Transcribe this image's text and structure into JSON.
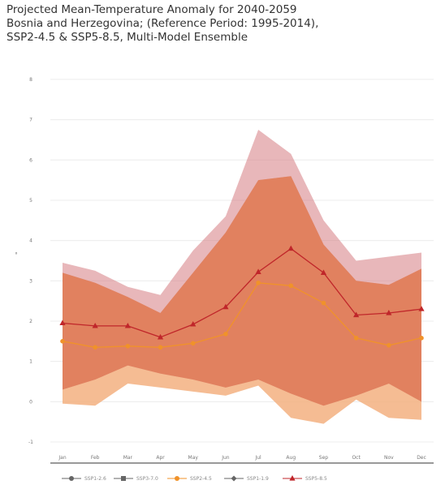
{
  "title_lines": [
    "Projected Mean-Temperature Anomaly for 2040-2059",
    "Bosnia and Herzegovina; (Reference Period: 1995-2014),",
    "SSP2-4.5 & SSP5-8.5, Multi-Model Ensemble"
  ],
  "chart_data": {
    "type": "area",
    "categories": [
      "Jan",
      "Feb",
      "Mar",
      "Apr",
      "May",
      "Jun",
      "Jul",
      "Aug",
      "Sep",
      "Oct",
      "Nov",
      "Dec"
    ],
    "y_ticks": [
      -1,
      0,
      1,
      2,
      3,
      4,
      5,
      6,
      7,
      8
    ],
    "ylim": [
      -1,
      8.2
    ],
    "ylabel": "°",
    "series": [
      {
        "name": "SSP2-4.5",
        "kind": "median",
        "color": "#f0922a",
        "marker": "circle",
        "values": [
          1.5,
          1.35,
          1.38,
          1.35,
          1.45,
          1.68,
          2.95,
          2.88,
          2.45,
          1.58,
          1.4,
          1.58
        ]
      },
      {
        "name": "SSP5-8.5",
        "kind": "median",
        "color": "#c0262a",
        "marker": "triangle",
        "values": [
          1.95,
          1.88,
          1.88,
          1.6,
          1.92,
          2.35,
          3.22,
          3.8,
          3.2,
          2.15,
          2.2,
          2.3
        ]
      }
    ],
    "bands": [
      {
        "legend_index": 0,
        "color": "#f3b080",
        "opacity": 0.85,
        "upper": [
          3.2,
          2.95,
          2.6,
          2.2,
          3.2,
          4.2,
          5.5,
          5.6,
          3.9,
          3.0,
          2.9,
          3.3
        ],
        "lower": [
          -0.05,
          -0.1,
          0.45,
          0.35,
          0.25,
          0.15,
          0.4,
          -0.4,
          -0.55,
          0.05,
          -0.4,
          -0.45
        ]
      },
      {
        "legend_index": 2,
        "color": "#d67c82",
        "opacity": 0.55,
        "upper": [
          3.45,
          3.25,
          2.85,
          2.65,
          3.75,
          4.6,
          6.75,
          6.15,
          4.5,
          3.5,
          3.6,
          3.7
        ],
        "lower": [
          0.3,
          0.55,
          0.9,
          0.7,
          0.55,
          0.35,
          0.55,
          0.2,
          -0.1,
          0.15,
          0.45,
          0.0
        ]
      },
      {
        "legend_index": 0,
        "color": "#e07a52",
        "opacity": 0.75,
        "upper": [
          3.2,
          2.95,
          2.6,
          2.2,
          3.2,
          4.2,
          5.5,
          5.6,
          3.9,
          3.0,
          2.9,
          3.3
        ],
        "lower": [
          0.3,
          0.55,
          0.9,
          0.7,
          0.55,
          0.35,
          0.55,
          0.2,
          -0.1,
          0.15,
          0.45,
          0.0
        ]
      }
    ],
    "legend": [
      {
        "label": "SSP1-2.6",
        "color": "#666666",
        "marker": "circle"
      },
      {
        "label": "SSP3-7.0",
        "color": "#666666",
        "marker": "square"
      },
      {
        "label": "SSP2-4.5",
        "color": "#f0922a",
        "marker": "circle"
      },
      {
        "label": "SSP1-1.9",
        "color": "#666666",
        "marker": "diamond"
      },
      {
        "label": "SSP5-8.5",
        "color": "#c0262a",
        "marker": "triangle"
      }
    ],
    "legend_position": "bottom",
    "grid": "horizontal"
  }
}
